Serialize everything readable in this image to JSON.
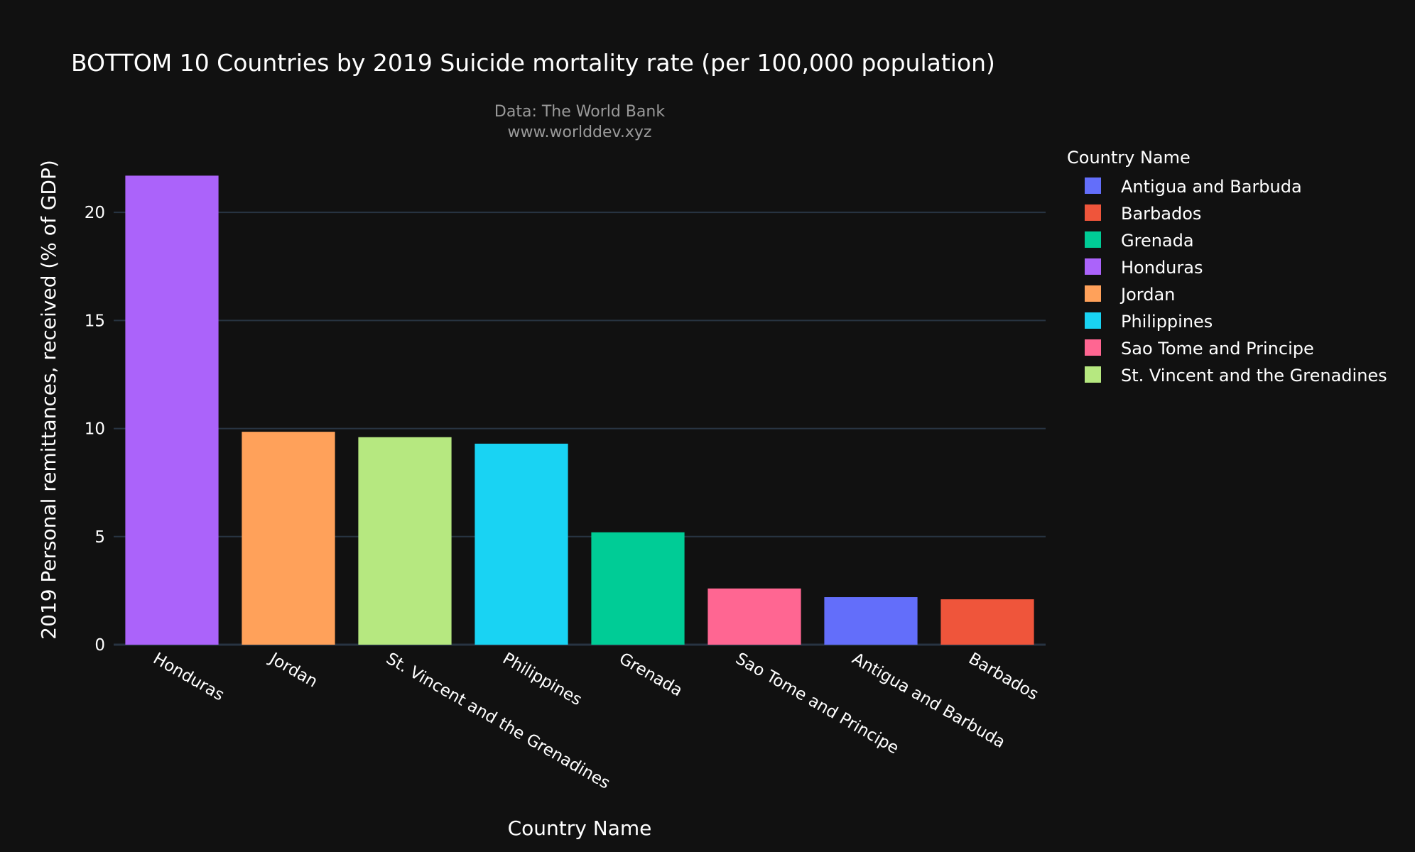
{
  "chart_data": {
    "type": "bar",
    "title": "BOTTOM 10 Countries by 2019 Suicide mortality rate (per 100,000 population)",
    "subtitle_lines": [
      "Data: The World Bank",
      "www.worlddev.xyz"
    ],
    "xlabel": "Country Name",
    "ylabel": "2019 Personal remittances, received (% of GDP)",
    "ylim": [
      0,
      22.6
    ],
    "yticks": [
      0,
      5,
      10,
      15,
      20
    ],
    "grid": true,
    "categories": [
      "Honduras",
      "Jordan",
      "St. Vincent and the Grenadines",
      "Philippines",
      "Grenada",
      "Sao Tome and Principe",
      "Antigua and Barbuda",
      "Barbados"
    ],
    "values": [
      21.7,
      9.85,
      9.6,
      9.3,
      5.2,
      2.6,
      2.2,
      2.1
    ],
    "bar_colors": [
      "#ab63fa",
      "#ffa15a",
      "#b6e880",
      "#19d3f3",
      "#00cc96",
      "#ff6692",
      "#636efa",
      "#ef553b"
    ],
    "legend": {
      "title": "Country Name",
      "placement": "right",
      "entries": [
        {
          "name": "Antigua and Barbuda",
          "color": "#636efa"
        },
        {
          "name": "Barbados",
          "color": "#ef553b"
        },
        {
          "name": "Grenada",
          "color": "#00cc96"
        },
        {
          "name": "Honduras",
          "color": "#ab63fa"
        },
        {
          "name": "Jordan",
          "color": "#ffa15a"
        },
        {
          "name": "Philippines",
          "color": "#19d3f3"
        },
        {
          "name": "Sao Tome and Principe",
          "color": "#ff6692"
        },
        {
          "name": "St. Vincent and the Grenadines",
          "color": "#b6e880"
        }
      ]
    }
  }
}
